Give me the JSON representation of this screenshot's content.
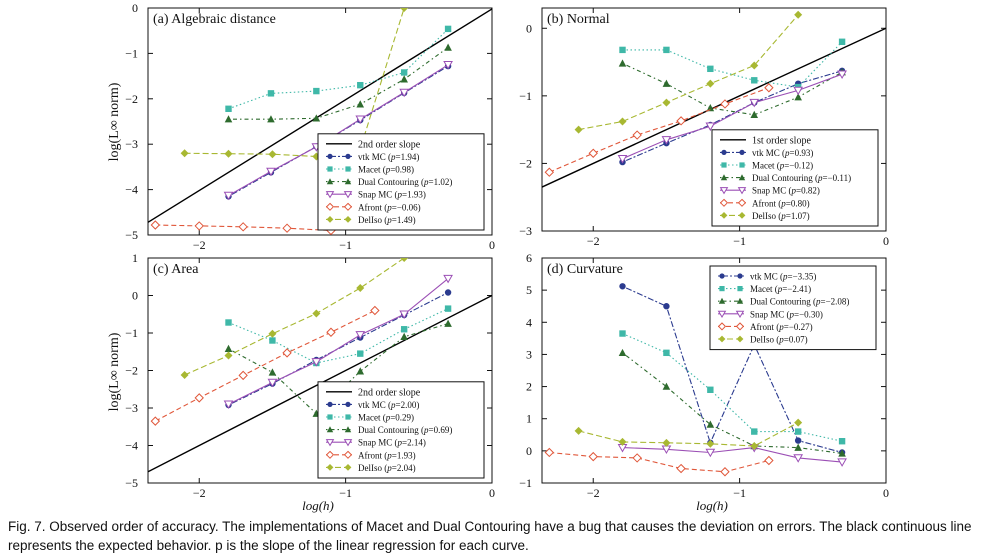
{
  "caption": {
    "label": "Fig. 7.",
    "text": "Observed order of accuracy. The implementations of Macet and Dual Contouring have a bug that causes the deviation on errors. The black continuous line represents the expected behavior. p is the slope of the linear regression for each curve."
  },
  "axis_text": {
    "ylabel_left": "log(L∞ norm)",
    "xlabel": "log(h)"
  },
  "styles": {
    "vtk": {
      "color": "#2b3b8f",
      "marker": "circle",
      "dash": "2,2,6,2"
    },
    "macet": {
      "color": "#3fb8a8",
      "marker": "square",
      "dash": "1.5,2.5"
    },
    "dual": {
      "color": "#2e6b2e",
      "marker": "triangle",
      "dash": "1.5,3,4,3"
    },
    "snap": {
      "color": "#9b4fb5",
      "marker": "triangle-down",
      "dash": ""
    },
    "afront": {
      "color": "#e0573a",
      "marker": "diamond-open",
      "dash": "5,3"
    },
    "delliso": {
      "color": "#a8b832",
      "marker": "diamond",
      "dash": "6,3"
    },
    "ref": {
      "color": "#000000"
    }
  },
  "chart_data": [
    {
      "type": "line",
      "title": "(a) Algebraic distance",
      "xlim": [
        -2.35,
        0
      ],
      "ylim": [
        -5,
        0
      ],
      "xticks": [
        -2,
        -1,
        0
      ],
      "yticks": [
        0,
        -1,
        -2,
        -3,
        -4,
        -5
      ],
      "ylabel": "log(L∞ norm)",
      "xlabel": "",
      "legend_position": "bottom-right",
      "reference": {
        "label": "2nd order slope",
        "x": [
          -2.35,
          0
        ],
        "y": [
          -4.72,
          -0.02
        ]
      },
      "series": [
        {
          "key": "vtk",
          "name": "vtk MC",
          "p": "1.94",
          "x": [
            -1.8,
            -1.51,
            -1.2,
            -0.9,
            -0.6,
            -0.3
          ],
          "y": [
            -4.15,
            -3.62,
            -3.05,
            -2.47,
            -1.87,
            -1.28
          ]
        },
        {
          "key": "macet",
          "name": "Macet",
          "p": "0.98",
          "x": [
            -1.8,
            -1.51,
            -1.2,
            -0.9,
            -0.6,
            -0.3
          ],
          "y": [
            -2.22,
            -1.88,
            -1.83,
            -1.7,
            -1.42,
            -0.46
          ]
        },
        {
          "key": "dual",
          "name": "Dual Contouring",
          "p": "1.02",
          "x": [
            -1.8,
            -1.51,
            -1.2,
            -0.9,
            -0.6,
            -0.3
          ],
          "y": [
            -2.45,
            -2.45,
            -2.43,
            -2.12,
            -1.57,
            -0.87
          ]
        },
        {
          "key": "snap",
          "name": "Snap MC",
          "p": "1.93",
          "x": [
            -1.8,
            -1.51,
            -1.2,
            -0.9,
            -0.6,
            -0.3
          ],
          "y": [
            -4.13,
            -3.6,
            -3.06,
            -2.45,
            -1.86,
            -1.25
          ]
        },
        {
          "key": "afront",
          "name": "Afront",
          "p": "−0.06",
          "x": [
            -2.3,
            -2.0,
            -1.7,
            -1.4,
            -1.1
          ],
          "y": [
            -4.78,
            -4.8,
            -4.82,
            -4.85,
            -4.9
          ]
        },
        {
          "key": "delliso",
          "name": "DelIso",
          "p": "1.49",
          "x": [
            -2.1,
            -1.8,
            -1.5,
            -1.2,
            -0.9,
            -0.6
          ],
          "y": [
            -3.2,
            -3.21,
            -3.22,
            -3.27,
            -3.1,
            0
          ]
        }
      ]
    },
    {
      "type": "line",
      "title": "(b) Normal",
      "xlim": [
        -2.35,
        0
      ],
      "ylim": [
        -3,
        0.3
      ],
      "xticks": [
        -2,
        -1,
        0
      ],
      "yticks": [
        0,
        -1,
        -2,
        -3
      ],
      "ylabel": "",
      "xlabel": "",
      "legend_position": "bottom-right",
      "reference": {
        "label": "1st order slope",
        "x": [
          -2.35,
          0
        ],
        "y": [
          -2.35,
          0
        ]
      },
      "series": [
        {
          "key": "vtk",
          "name": "vtk MC",
          "p": "0.93",
          "x": [
            -1.8,
            -1.5,
            -1.2,
            -0.9,
            -0.6,
            -0.3
          ],
          "y": [
            -1.98,
            -1.7,
            -1.43,
            -1.1,
            -0.82,
            -0.63
          ]
        },
        {
          "key": "macet",
          "name": "Macet",
          "p": "−0.12",
          "x": [
            -1.8,
            -1.5,
            -1.2,
            -0.9,
            -0.6,
            -0.3
          ],
          "y": [
            -0.32,
            -0.32,
            -0.6,
            -0.77,
            -0.87,
            -0.2
          ]
        },
        {
          "key": "dual",
          "name": "Dual Contouring",
          "p": "−0.11",
          "x": [
            -1.8,
            -1.5,
            -1.2,
            -0.9,
            -0.6,
            -0.3
          ],
          "y": [
            -0.52,
            -0.82,
            -1.18,
            -1.28,
            -1.02,
            -0.65
          ]
        },
        {
          "key": "snap",
          "name": "Snap MC",
          "p": "0.82",
          "x": [
            -1.8,
            -1.5,
            -1.2,
            -0.9,
            -0.6,
            -0.3
          ],
          "y": [
            -1.93,
            -1.65,
            -1.45,
            -1.1,
            -0.92,
            -0.68
          ]
        },
        {
          "key": "afront",
          "name": "Afront",
          "p": "0.80",
          "x": [
            -2.3,
            -2.0,
            -1.7,
            -1.4,
            -1.1,
            -0.8
          ],
          "y": [
            -2.13,
            -1.85,
            -1.58,
            -1.37,
            -1.12,
            -0.88
          ]
        },
        {
          "key": "delliso",
          "name": "DelIso",
          "p": "1.07",
          "x": [
            -2.1,
            -1.8,
            -1.5,
            -1.2,
            -0.9,
            -0.6
          ],
          "y": [
            -1.5,
            -1.38,
            -1.1,
            -0.82,
            -0.55,
            0.2
          ]
        }
      ]
    },
    {
      "type": "line",
      "title": "(c) Area",
      "xlim": [
        -2.35,
        0
      ],
      "ylim": [
        -5,
        1
      ],
      "xticks": [
        -2,
        -1,
        0
      ],
      "yticks": [
        1,
        0,
        -1,
        -2,
        -3,
        -4,
        -5
      ],
      "ylabel": "log(L∞ norm)",
      "xlabel": "log(h)",
      "legend_position": "bottom-right",
      "reference": {
        "label": "2nd order slope",
        "x": [
          -2.35,
          0
        ],
        "y": [
          -4.7,
          0
        ]
      },
      "series": [
        {
          "key": "vtk",
          "name": "vtk MC",
          "p": "2.00",
          "x": [
            -1.8,
            -1.5,
            -1.2,
            -0.9,
            -0.6,
            -0.3
          ],
          "y": [
            -2.92,
            -2.35,
            -1.72,
            -1.12,
            -0.52,
            0.08
          ]
        },
        {
          "key": "macet",
          "name": "Macet",
          "p": "0.29",
          "x": [
            -1.8,
            -1.5,
            -1.2,
            -0.9,
            -0.6,
            -0.3
          ],
          "y": [
            -0.72,
            -1.2,
            -1.8,
            -1.55,
            -0.9,
            -0.35
          ]
        },
        {
          "key": "dual",
          "name": "Dual Contouring",
          "p": "0.69",
          "x": [
            -1.8,
            -1.5,
            -1.2,
            -0.9,
            -0.6,
            -0.3
          ],
          "y": [
            -1.42,
            -2.05,
            -3.15,
            -2.02,
            -1.1,
            -0.75
          ]
        },
        {
          "key": "snap",
          "name": "Snap MC",
          "p": "2.14",
          "x": [
            -1.8,
            -1.5,
            -1.2,
            -0.9,
            -0.6,
            -0.3
          ],
          "y": [
            -2.9,
            -2.32,
            -1.77,
            -1.05,
            -0.5,
            0.45
          ]
        },
        {
          "key": "afront",
          "name": "Afront",
          "p": "1.93",
          "x": [
            -2.3,
            -2.0,
            -1.7,
            -1.4,
            -1.1,
            -0.8
          ],
          "y": [
            -3.35,
            -2.73,
            -2.13,
            -1.53,
            -0.98,
            -0.4
          ]
        },
        {
          "key": "delliso",
          "name": "DelIso",
          "p": "2.04",
          "x": [
            -2.1,
            -1.8,
            -1.5,
            -1.2,
            -0.9,
            -0.6
          ],
          "y": [
            -2.12,
            -1.6,
            -1.02,
            -0.48,
            0.2,
            1.0
          ]
        }
      ]
    },
    {
      "type": "line",
      "title": "(d) Curvature",
      "xlim": [
        -2.35,
        0
      ],
      "ylim": [
        -1,
        6
      ],
      "xticks": [
        -2,
        -1,
        0
      ],
      "yticks": [
        6,
        5,
        4,
        3,
        2,
        1,
        0,
        -1
      ],
      "ylabel": "",
      "xlabel": "log(h)",
      "legend_position": "top-right",
      "reference": null,
      "series": [
        {
          "key": "vtk",
          "name": "vtk MC",
          "p": "−3.35",
          "x": [
            -1.8,
            -1.5,
            -1.2,
            -0.9,
            -0.6,
            -0.3
          ],
          "y": [
            5.12,
            4.5,
            0.25,
            3.3,
            0.32,
            -0.05
          ]
        },
        {
          "key": "macet",
          "name": "Macet",
          "p": "−2.41",
          "x": [
            -1.8,
            -1.5,
            -1.2,
            -0.9,
            -0.6,
            -0.3
          ],
          "y": [
            3.65,
            3.05,
            1.9,
            0.6,
            0.6,
            0.3
          ]
        },
        {
          "key": "dual",
          "name": "Dual Contouring",
          "p": "−2.08",
          "x": [
            -1.8,
            -1.5,
            -1.2,
            -0.9,
            -0.6,
            -0.3
          ],
          "y": [
            3.05,
            2.0,
            0.82,
            0.15,
            0.1,
            -0.08
          ]
        },
        {
          "key": "snap",
          "name": "Snap MC",
          "p": "−0.30",
          "x": [
            -1.8,
            -1.5,
            -1.2,
            -0.9,
            -0.6,
            -0.3
          ],
          "y": [
            0.1,
            0.05,
            -0.05,
            0.1,
            -0.22,
            -0.35
          ]
        },
        {
          "key": "afront",
          "name": "Afront",
          "p": "−0.27",
          "x": [
            -2.3,
            -2.0,
            -1.7,
            -1.4,
            -1.1,
            -0.8
          ],
          "y": [
            -0.05,
            -0.18,
            -0.22,
            -0.55,
            -0.65,
            -0.3
          ]
        },
        {
          "key": "delliso",
          "name": "DelIso",
          "p": "0.07",
          "x": [
            -2.1,
            -1.8,
            -1.5,
            -1.2,
            -0.9,
            -0.6
          ],
          "y": [
            0.62,
            0.28,
            0.25,
            0.22,
            0.15,
            0.88
          ]
        }
      ]
    }
  ]
}
